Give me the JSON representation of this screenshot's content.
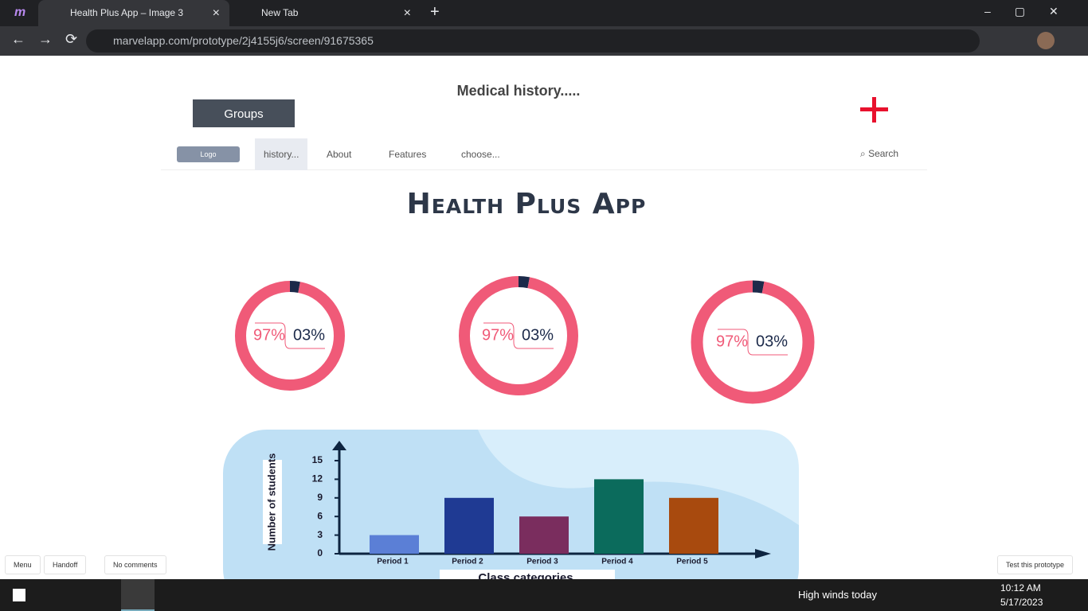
{
  "browser": {
    "tabs": [
      "Health Plus App – Image 3",
      "New Tab"
    ],
    "url": "marvelapp.com/prototype/2j4155j6/screen/91675365"
  },
  "header": {
    "title": "Medical history.....",
    "groups_button": "Groups"
  },
  "nav": {
    "logo": "Logo",
    "items": [
      "history...",
      "About",
      "Features",
      "choose..."
    ],
    "search": "Search"
  },
  "app_title": "Health Plus App",
  "chart_data": [
    {
      "type": "pie",
      "values": [
        97,
        3
      ],
      "value_labels": [
        "97%",
        "03%"
      ],
      "colors": [
        "#f05a78",
        "#1c2a4a"
      ]
    },
    {
      "type": "pie",
      "values": [
        97,
        3
      ],
      "value_labels": [
        "97%",
        "03%"
      ],
      "colors": [
        "#f05a78",
        "#1c2a4a"
      ]
    },
    {
      "type": "pie",
      "values": [
        97,
        3
      ],
      "value_labels": [
        "97%",
        "03%"
      ],
      "colors": [
        "#f05a78",
        "#1c2a4a"
      ]
    },
    {
      "type": "bar",
      "ylabel": "Number of students",
      "xlabel": "Class categories",
      "categories": [
        "Period 1",
        "Period 2",
        "Period 3",
        "Period 4",
        "Period 5"
      ],
      "values": [
        3,
        9,
        6,
        12,
        9
      ],
      "colors": [
        "#5b7fd6",
        "#1f3a93",
        "#7a2d5e",
        "#0b6b5c",
        "#a84a0e"
      ],
      "ylim": [
        0,
        15
      ],
      "yticks": [
        0,
        3,
        6,
        9,
        12,
        15
      ]
    }
  ],
  "footer_bar": {
    "left": [
      "Menu",
      "Handoff",
      "No comments"
    ],
    "right": "Test this prototype"
  },
  "taskbar": {
    "weather": "High winds today",
    "time": "10:12 AM",
    "date": "5/17/2023"
  }
}
